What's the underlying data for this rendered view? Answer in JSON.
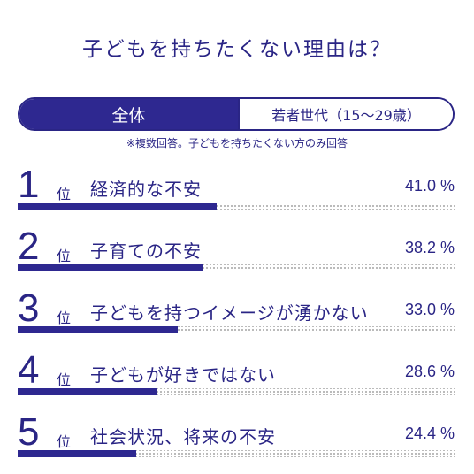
{
  "header": {
    "title": "子どもを持ちたくない理由は？"
  },
  "tabs": [
    {
      "label": "全体"
    },
    {
      "label": "若者世代（15～29歳）"
    }
  ],
  "note": "※複数回答。子どもを持ちたくない方のみ回答",
  "chart_data": {
    "type": "bar",
    "title": "子どもを持ちたくない理由は？",
    "categories": [
      "経済的な不安",
      "子育ての不安",
      "子どもを持つイメージが湧かない",
      "子どもが好きではない",
      "社会状況、将来の不安"
    ],
    "values": [
      41.0,
      38.2,
      33.0,
      28.6,
      24.4
    ],
    "ylim": [
      0,
      90
    ],
    "ranks": [
      {
        "num": "1",
        "suffix": "位",
        "label": "経済的な不安",
        "value_text": "41.0 %",
        "value": 41.0
      },
      {
        "num": "2",
        "suffix": "位",
        "label": "子育ての不安",
        "value_text": "38.2 %",
        "value": 38.2
      },
      {
        "num": "3",
        "suffix": "位",
        "label": "子どもを持つイメージが湧かない",
        "value_text": "33.0 %",
        "value": 33.0
      },
      {
        "num": "4",
        "suffix": "位",
        "label": "子どもが好きではない",
        "value_text": "28.6 %",
        "value": 28.6
      },
      {
        "num": "5",
        "suffix": "位",
        "label": "社会状況、将来の不安",
        "value_text": "24.4 %",
        "value": 24.4
      }
    ]
  },
  "colors": {
    "accent": "#2e2890",
    "dots": "#aaaaaa"
  }
}
